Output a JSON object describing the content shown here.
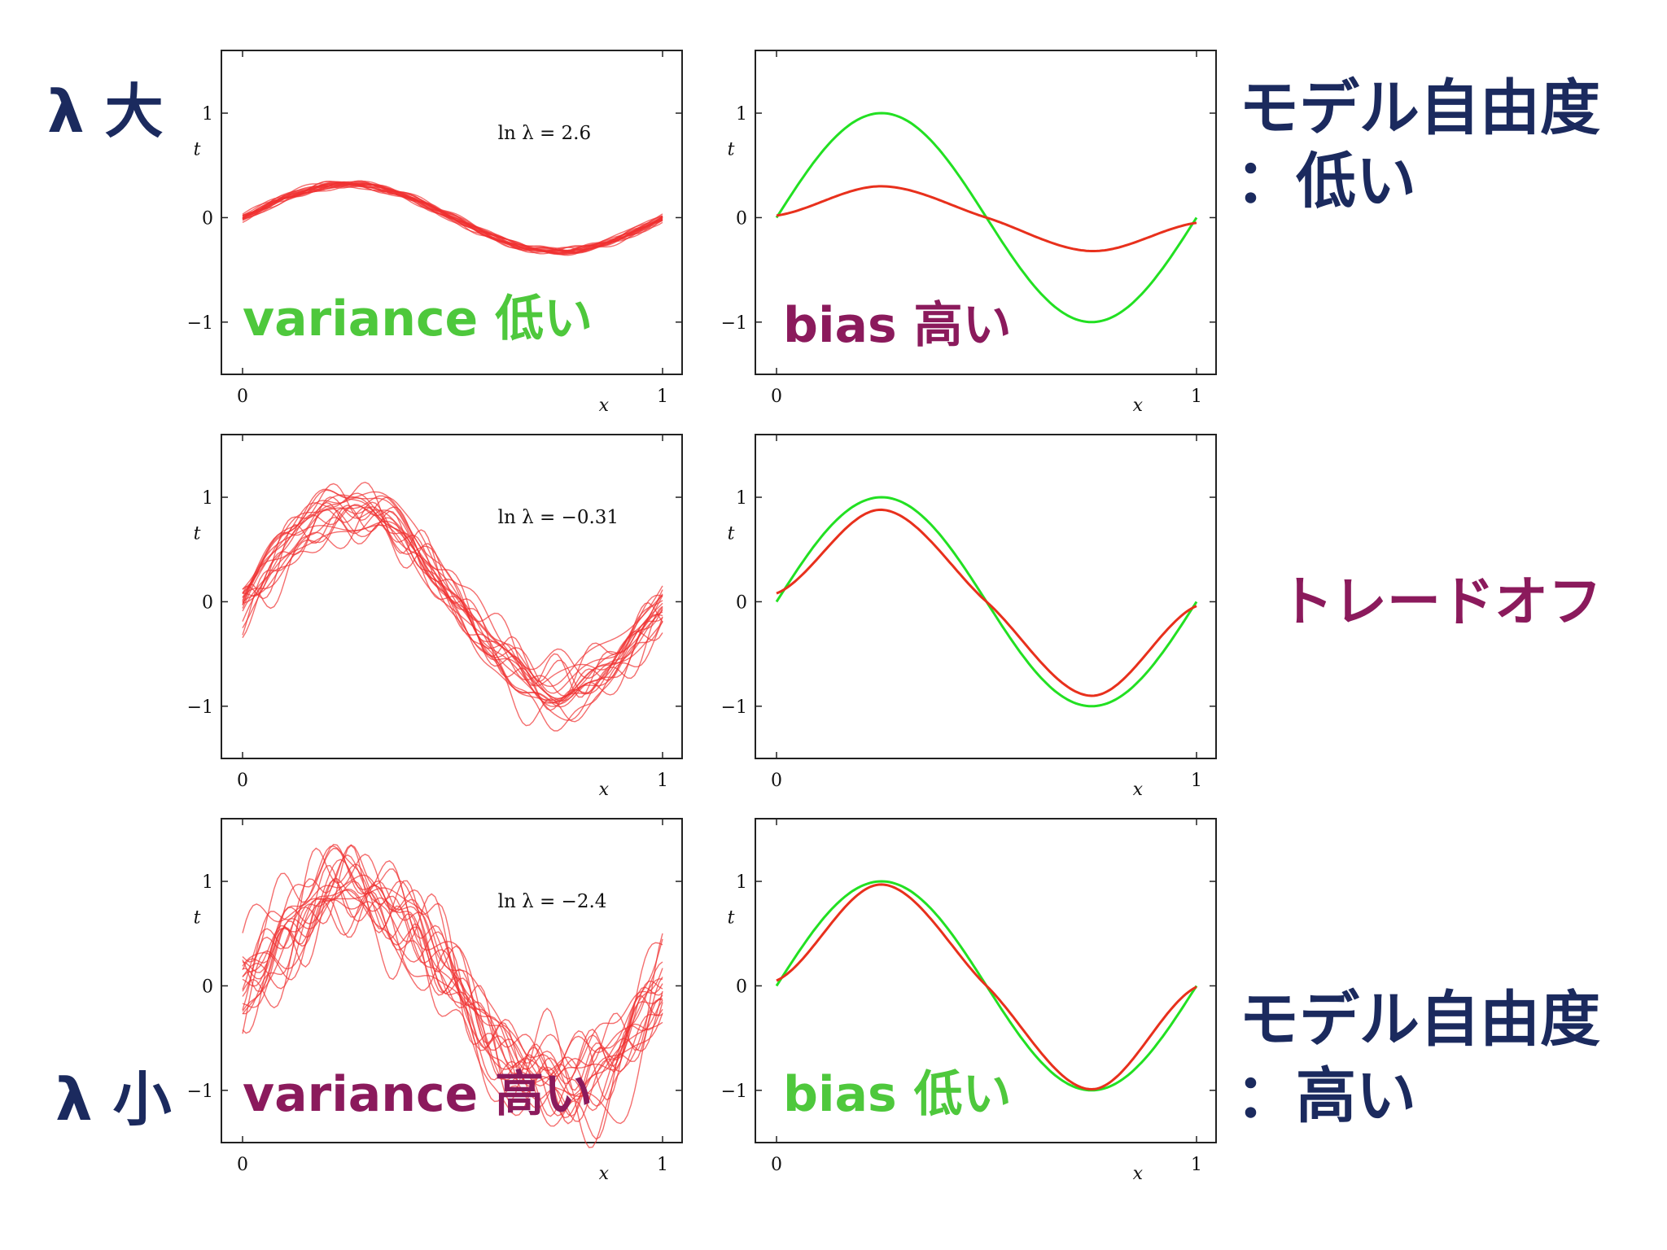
{
  "colors": {
    "navy": "#1b2a5e",
    "purple": "#8b1a5c",
    "green": "#4ec83c",
    "sample_line": "#f03030",
    "mean_line": "#e8301c",
    "true_line": "#22e022"
  },
  "labels": {
    "lambda_large": "λ 大",
    "lambda_small": "λ 小",
    "freedom_low_1": "モデル自由度",
    "freedom_low_2": "：低い",
    "tradeoff": "トレードオフ",
    "freedom_high_1": "モデル自由度",
    "freedom_high_2": "：高い",
    "variance_low": "variance 低い",
    "bias_high": "bias 高い",
    "variance_high": "variance 高い",
    "bias_low": "bias 低い"
  },
  "chart_data": [
    {
      "type": "line",
      "annotation": "ln λ = 2.6",
      "xlabel": "x",
      "ylabel": "t",
      "xlim": [
        0,
        1
      ],
      "ylim": [
        -1.5,
        1.6
      ],
      "xticks": [
        "0",
        "1"
      ],
      "yticks": [
        "−1",
        "0",
        "1"
      ],
      "series": [
        {
          "kind": "fits",
          "count": 20,
          "amplitude": 0.32,
          "spread": 0.05,
          "wiggle": 0.02
        }
      ]
    },
    {
      "type": "line",
      "xlabel": "x",
      "ylabel": "t",
      "xlim": [
        0,
        1
      ],
      "ylim": [
        -1.5,
        1.6
      ],
      "xticks": [
        "0",
        "1"
      ],
      "yticks": [
        "−1",
        "0",
        "1"
      ],
      "series": [
        {
          "kind": "true",
          "color": "green",
          "function": "sin(2πx)",
          "x": [
            0,
            0.25,
            0.5,
            0.75,
            1
          ],
          "y": [
            0,
            1,
            0,
            -1,
            0
          ]
        },
        {
          "kind": "mean",
          "color": "red",
          "x": [
            0,
            0.25,
            0.5,
            0.75,
            1
          ],
          "y": [
            0.02,
            0.3,
            0.0,
            -0.32,
            -0.05
          ]
        }
      ]
    },
    {
      "type": "line",
      "annotation": "ln λ = −0.31",
      "xlabel": "x",
      "ylabel": "t",
      "xlim": [
        0,
        1
      ],
      "ylim": [
        -1.5,
        1.6
      ],
      "xticks": [
        "0",
        "1"
      ],
      "yticks": [
        "−1",
        "0",
        "1"
      ],
      "series": [
        {
          "kind": "fits",
          "count": 20,
          "amplitude": 0.9,
          "spread": 0.2,
          "wiggle": 0.12
        }
      ]
    },
    {
      "type": "line",
      "xlabel": "x",
      "ylabel": "t",
      "xlim": [
        0,
        1
      ],
      "ylim": [
        -1.5,
        1.6
      ],
      "xticks": [
        "0",
        "1"
      ],
      "yticks": [
        "−1",
        "0",
        "1"
      ],
      "series": [
        {
          "kind": "true",
          "color": "green",
          "function": "sin(2πx)",
          "x": [
            0,
            0.25,
            0.5,
            0.75,
            1
          ],
          "y": [
            0,
            1,
            0,
            -1,
            0
          ]
        },
        {
          "kind": "mean",
          "color": "red",
          "x": [
            0,
            0.25,
            0.5,
            0.75,
            1
          ],
          "y": [
            0.08,
            0.88,
            0.0,
            -0.9,
            -0.04
          ]
        }
      ]
    },
    {
      "type": "line",
      "annotation": "ln λ = −2.4",
      "xlabel": "x",
      "ylabel": "t",
      "xlim": [
        0,
        1
      ],
      "ylim": [
        -1.5,
        1.6
      ],
      "xticks": [
        "0",
        "1"
      ],
      "yticks": [
        "−1",
        "0",
        "1"
      ],
      "series": [
        {
          "kind": "fits",
          "count": 20,
          "amplitude": 0.95,
          "spread": 0.25,
          "wiggle": 0.25
        }
      ]
    },
    {
      "type": "line",
      "xlabel": "x",
      "ylabel": "t",
      "xlim": [
        0,
        1
      ],
      "ylim": [
        -1.5,
        1.6
      ],
      "xticks": [
        "0",
        "1"
      ],
      "yticks": [
        "−1",
        "0",
        "1"
      ],
      "series": [
        {
          "kind": "true",
          "color": "green",
          "function": "sin(2πx)",
          "x": [
            0,
            0.25,
            0.5,
            0.75,
            1
          ],
          "y": [
            0,
            1,
            0,
            -1,
            0
          ]
        },
        {
          "kind": "mean",
          "color": "red",
          "x": [
            0,
            0.25,
            0.5,
            0.75,
            1
          ],
          "y": [
            0.05,
            0.97,
            0.0,
            -0.99,
            -0.01
          ]
        }
      ]
    }
  ]
}
